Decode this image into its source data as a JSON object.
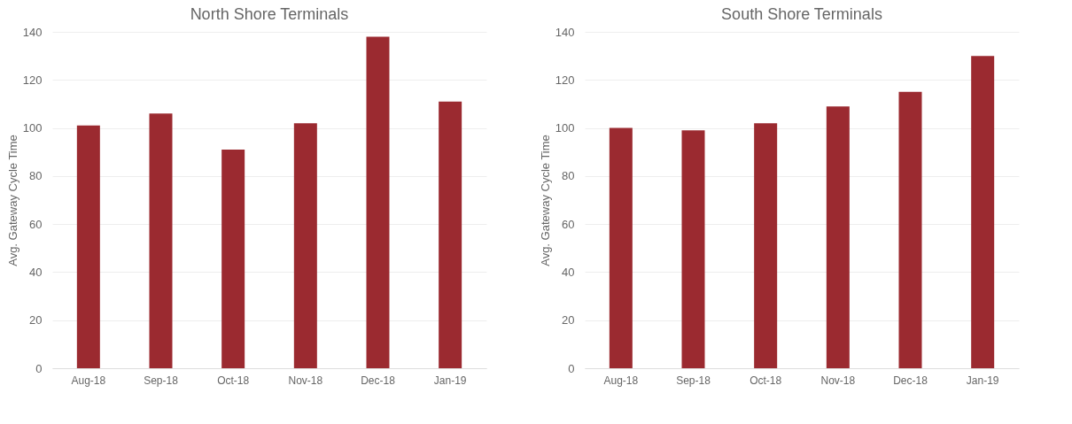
{
  "chart_data": [
    {
      "type": "bar",
      "title": "North Shore Terminals",
      "ylabel": "Avg. Gateway Cycle Time",
      "categories": [
        "Aug-18",
        "Sep-18",
        "Oct-18",
        "Nov-18",
        "Dec-18",
        "Jan-19"
      ],
      "values": [
        101,
        106,
        91,
        102,
        138,
        111
      ],
      "color": "#9b2a30",
      "ylim": [
        0,
        140
      ],
      "yticks": [
        0,
        20,
        40,
        60,
        80,
        100,
        120,
        140
      ],
      "grid": "y"
    },
    {
      "type": "bar",
      "title": "South Shore Terminals",
      "ylabel": "Avg. Gateway Cycle Time",
      "categories": [
        "Aug-18",
        "Sep-18",
        "Oct-18",
        "Nov-18",
        "Dec-18",
        "Jan-19"
      ],
      "values": [
        100,
        99,
        102,
        109,
        115,
        130
      ],
      "color": "#9b2a30",
      "ylim": [
        0,
        140
      ],
      "yticks": [
        0,
        20,
        40,
        60,
        80,
        100,
        120,
        140
      ],
      "grid": "y"
    }
  ]
}
